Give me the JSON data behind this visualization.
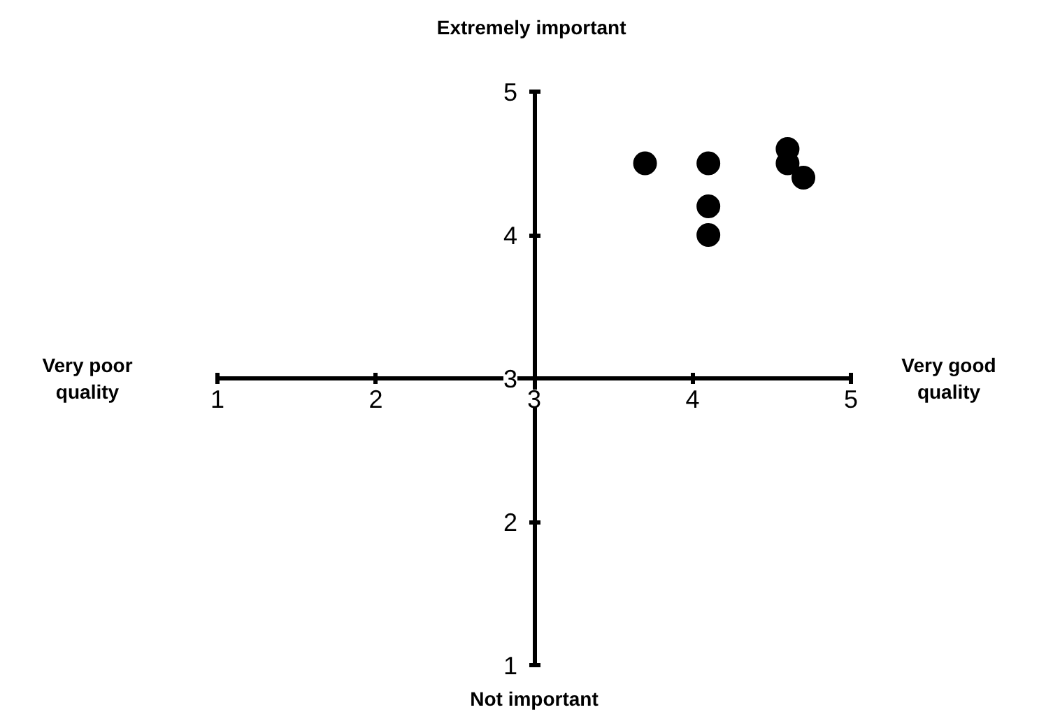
{
  "chart_data": {
    "type": "scatter",
    "x": [
      3.7,
      4.1,
      4.1,
      4.1,
      4.6,
      4.6,
      4.7
    ],
    "values": [
      4.5,
      4.5,
      4.2,
      4.0,
      4.6,
      4.5,
      4.4
    ],
    "color": "#000000",
    "marker": "circle",
    "xlim": [
      1,
      5
    ],
    "ylim": [
      1,
      5
    ],
    "xticks": [
      1,
      2,
      3,
      4,
      5
    ],
    "yticks": [
      1,
      2,
      3,
      4,
      5
    ],
    "grid": false,
    "annotations": [
      "Extremely  important",
      "Very poor\nquality",
      "Very good\nquality",
      "Not important"
    ]
  }
}
